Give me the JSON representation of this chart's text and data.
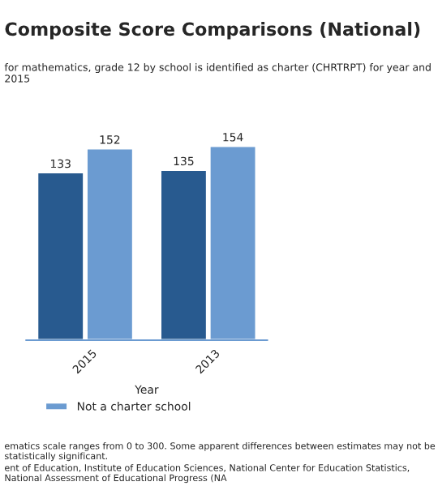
{
  "chart_data": {
    "type": "bar",
    "title": "Composite Score Comparisons (National)",
    "subtitle": "for mathematics, grade 12 by school is identified as charter (CHRTRPT) for year and 2015",
    "xlabel": "Year",
    "categories": [
      "2015",
      "2013"
    ],
    "series": [
      {
        "color": "#285a8f",
        "values": [
          133,
          135
        ]
      },
      {
        "name": "Not a charter school",
        "color": "#6b9bd1",
        "values": [
          152,
          154
        ]
      }
    ],
    "tick_labels": "x",
    "data_labels": true,
    "legend": "bottom",
    "annotations": [
      "ematics scale ranges from 0 to 300. Some apparent differences between estimates may not be statistically significant.",
      "ent of Education, Institute of Education Sciences, National Center for Education Statistics, National Assessment of Educational Progress (NA"
    ]
  }
}
